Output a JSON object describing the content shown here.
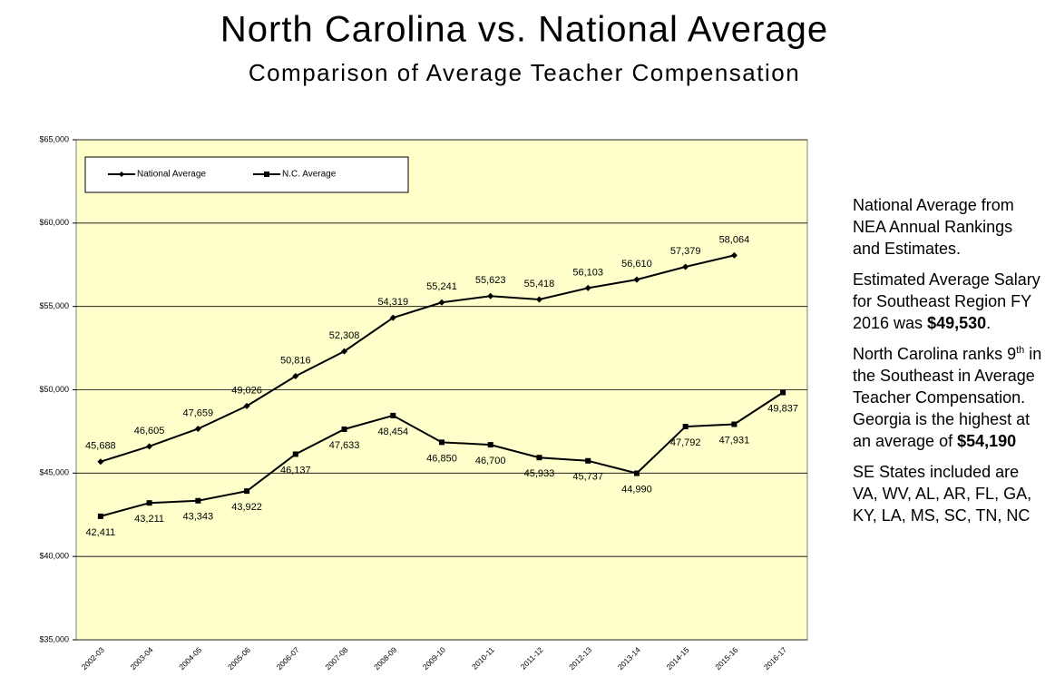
{
  "chart_data": {
    "type": "line",
    "title": "North Carolina vs. National Average",
    "subtitle": "Comparison of Average Teacher Compensation",
    "categories": [
      "2002-03",
      "2003-04",
      "2004-05",
      "2005-06",
      "2006-07",
      "2007-08",
      "2008-09",
      "2009-10",
      "2010-11",
      "2011-12",
      "2012-13",
      "2013-14",
      "2014-15",
      "2015-16",
      "2016-17"
    ],
    "series": [
      {
        "name": "National Average",
        "color": "#000000",
        "marker": "diamond",
        "values": [
          45688,
          46605,
          47659,
          49026,
          50816,
          52308,
          54319,
          55241,
          55623,
          55418,
          56103,
          56610,
          57379,
          58064,
          null
        ],
        "value_labels": [
          "45,688",
          "46,605",
          "47,659",
          "49,026",
          "50,816",
          "52,308",
          "54,319",
          "55,241",
          "55,623",
          "55,418",
          "56,103",
          "56,610",
          "57,379",
          "58,064",
          null
        ]
      },
      {
        "name": "N.C. Average",
        "color": "#000000",
        "marker": "square",
        "values": [
          42411,
          43211,
          43343,
          43922,
          46137,
          47633,
          48454,
          46850,
          46700,
          45933,
          45737,
          44990,
          47792,
          47931,
          49837
        ],
        "value_labels": [
          "42,411",
          "43,211",
          "43,343",
          "43,922",
          "46,137",
          "47,633",
          "48,454",
          "46,850",
          "46,700",
          "45,933",
          "45,737",
          "44,990",
          "47,792",
          "47,931",
          "49,837"
        ]
      }
    ],
    "ylim": [
      35000,
      65000
    ],
    "yticks": [
      {
        "value": 35000,
        "label": "$35,000"
      },
      {
        "value": 40000,
        "label": "$40,000"
      },
      {
        "value": 45000,
        "label": "$45,000"
      },
      {
        "value": 50000,
        "label": "$50,000"
      },
      {
        "value": 55000,
        "label": "$55,000"
      },
      {
        "value": 60000,
        "label": "$60,000"
      },
      {
        "value": 65000,
        "label": "$65,000"
      }
    ],
    "grid": true,
    "legend": "upper left",
    "background": "#ffffcc"
  },
  "side_notes": [
    [
      {
        "text": "National Average from NEA Annual Rankings and Estimates."
      }
    ],
    [
      {
        "text": "Estimated Average Salary for Southeast Region FY 2016 was "
      },
      {
        "text": "$49,530",
        "style": "bold"
      },
      {
        "text": "."
      }
    ],
    [
      {
        "text": "North Carolina ranks 9"
      },
      {
        "text": "th",
        "style": "sup"
      },
      {
        "text": " in the Southeast in Average Teacher Compensation. Georgia is the highest at an average of "
      },
      {
        "text": "$54,190",
        "style": "bold"
      }
    ],
    [
      {
        "text": "SE States included are VA, WV, AL, AR, FL, GA, KY, LA, MS, SC, TN, NC"
      }
    ]
  ]
}
